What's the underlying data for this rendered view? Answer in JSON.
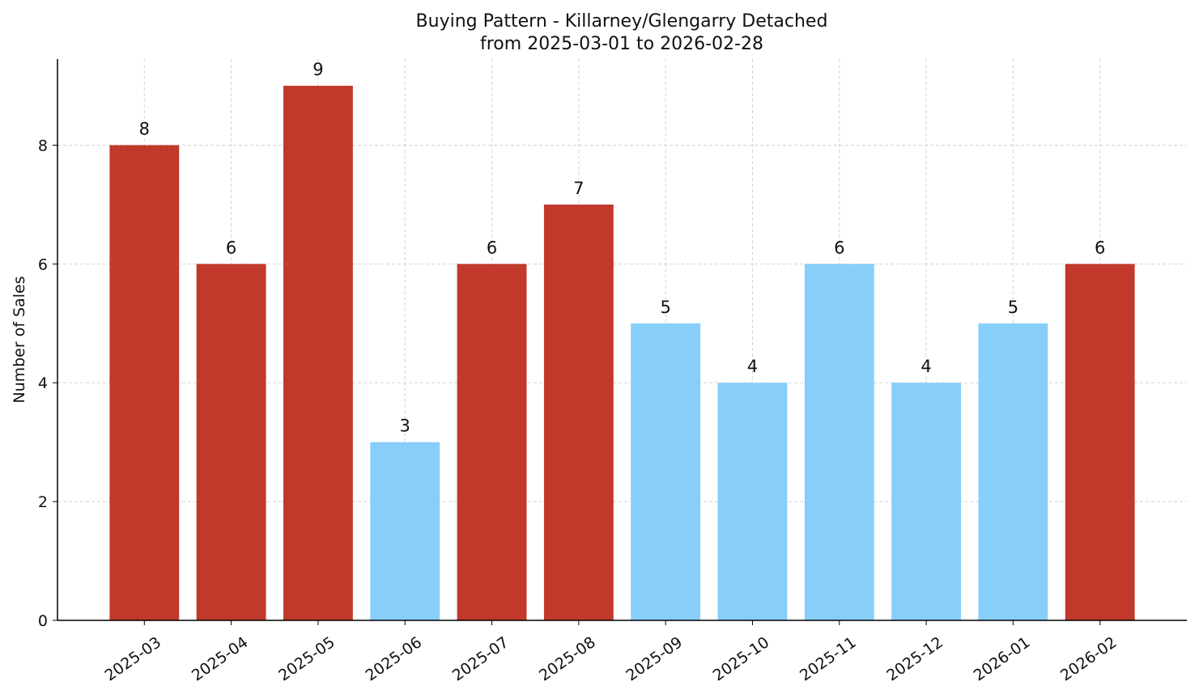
{
  "chart_data": {
    "type": "bar",
    "title": "Buying Pattern - Killarney/Glengarry Detached",
    "subtitle": "from 2025-03-01 to 2026-02-28",
    "y_label": "Number of Sales",
    "categories": [
      "2025-03",
      "2025-04",
      "2025-05",
      "2025-06",
      "2025-07",
      "2025-08",
      "2025-09",
      "2025-10",
      "2025-11",
      "2025-12",
      "2026-01",
      "2026-02"
    ],
    "values": [
      8,
      6,
      9,
      3,
      6,
      7,
      5,
      4,
      6,
      4,
      5,
      6
    ],
    "colors": [
      "#c0392b",
      "#c0392b",
      "#c0392b",
      "#87cefa",
      "#c0392b",
      "#c0392b",
      "#87cefa",
      "#87cefa",
      "#87cefa",
      "#87cefa",
      "#87cefa",
      "#c0392b"
    ],
    "ylim": [
      0,
      9.45
    ],
    "yticks": [
      0,
      2,
      4,
      6,
      8
    ],
    "grid": true
  }
}
